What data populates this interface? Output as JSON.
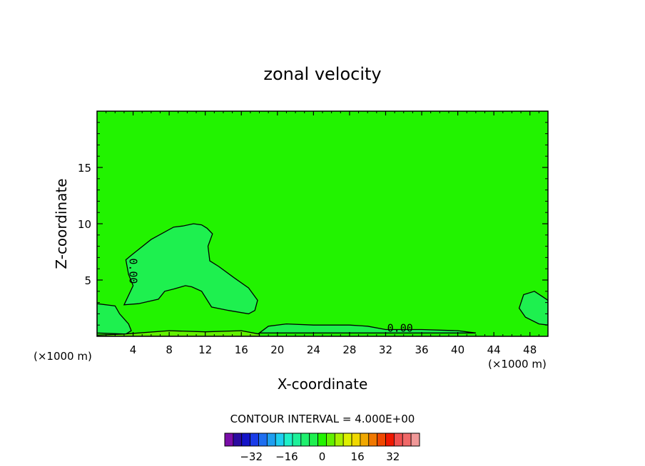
{
  "chart_data": {
    "type": "heatmap",
    "title": "zonal velocity",
    "xlabel": "X-coordinate",
    "ylabel": "Z-coordinate",
    "x_unit_left": "(×1000 m)",
    "x_unit_right": "(×1000 m)",
    "xlim": [
      0,
      50
    ],
    "ylim": [
      0,
      20
    ],
    "x_ticks": [
      4,
      8,
      12,
      16,
      20,
      24,
      28,
      32,
      36,
      40,
      44,
      48
    ],
    "y_ticks": [
      5,
      10,
      15
    ],
    "background_color": "#22f300",
    "regions": [
      {
        "name": "weak-negative-upper-left",
        "color": "#1ef04f",
        "outline": [
          [
            0,
            2.9
          ],
          [
            2,
            2.7
          ],
          [
            2.5,
            2.0
          ],
          [
            3.5,
            1.1
          ],
          [
            3.8,
            0.5
          ],
          [
            3.2,
            0.2
          ],
          [
            0,
            0.3
          ]
        ]
      },
      {
        "name": "weak-negative-plume",
        "color": "#1ef04f",
        "outline": [
          [
            3,
            2.8
          ],
          [
            4,
            4.5
          ],
          [
            3.5,
            5.5
          ],
          [
            3.2,
            6.8
          ],
          [
            3.8,
            7.2
          ],
          [
            6,
            8.6
          ],
          [
            8.5,
            9.7
          ],
          [
            9.5,
            9.8
          ],
          [
            10.7,
            10.0
          ],
          [
            11.6,
            9.9
          ],
          [
            12.2,
            9.6
          ],
          [
            12.8,
            9.1
          ],
          [
            12.3,
            8.0
          ],
          [
            12.5,
            6.7
          ],
          [
            13.5,
            6.2
          ],
          [
            15.2,
            5.2
          ],
          [
            16.8,
            4.3
          ],
          [
            17.8,
            3.2
          ],
          [
            17.5,
            2.3
          ],
          [
            16.8,
            2.0
          ],
          [
            14.6,
            2.3
          ],
          [
            12.7,
            2.6
          ],
          [
            11.6,
            4.0
          ],
          [
            10.5,
            4.4
          ],
          [
            9.8,
            4.5
          ],
          [
            8.5,
            4.2
          ],
          [
            7.5,
            4.0
          ],
          [
            6.8,
            3.3
          ],
          [
            4.6,
            2.9
          ]
        ]
      },
      {
        "name": "weak-negative-surface",
        "color": "#1ef04f",
        "outline": [
          [
            18,
            0.3
          ],
          [
            19,
            0.9
          ],
          [
            21,
            1.1
          ],
          [
            24,
            1.0
          ],
          [
            28,
            1.0
          ],
          [
            30,
            0.9
          ],
          [
            32,
            0.6
          ],
          [
            36,
            0.6
          ],
          [
            40,
            0.5
          ],
          [
            42,
            0.3
          ]
        ]
      },
      {
        "name": "weak-negative-right",
        "color": "#1ef04f",
        "outline": [
          [
            50,
            3.2
          ],
          [
            48.5,
            4.0
          ],
          [
            47.3,
            3.7
          ],
          [
            46.8,
            2.5
          ],
          [
            47.5,
            1.7
          ],
          [
            49,
            1.1
          ],
          [
            50,
            1.0
          ]
        ]
      },
      {
        "name": "weak-positive-surface-band",
        "color": "#62f000",
        "outline": [
          [
            0,
            0.1
          ],
          [
            3,
            0.2
          ],
          [
            8,
            0.5
          ],
          [
            12,
            0.4
          ],
          [
            16,
            0.5
          ],
          [
            18,
            0.2
          ],
          [
            18,
            0
          ],
          [
            0,
            0
          ]
        ]
      }
    ],
    "contour_labels": [
      {
        "text": "0.00",
        "x": 3.6,
        "y": 5.8,
        "rotation": 90
      },
      {
        "text": "0.00",
        "x": 33.6,
        "y": 0.4,
        "rotation": 0
      }
    ],
    "contour_interval_text": "CONTOUR INTERVAL = 4.000E+00",
    "colorbar": {
      "colors": [
        "#7a0da8",
        "#2a0aa0",
        "#1414c8",
        "#1a3ce8",
        "#1e6ef0",
        "#1e9ef0",
        "#1ecef0",
        "#1ef0c8",
        "#1ef09a",
        "#1ef06e",
        "#1ef04f",
        "#22f300",
        "#62f000",
        "#a8f000",
        "#def000",
        "#f0d800",
        "#f0a800",
        "#f07800",
        "#f04800",
        "#f01800",
        "#f05050",
        "#f06868",
        "#f09898"
      ],
      "tick_labels": [
        "−32",
        "−16",
        "0",
        "16",
        "32"
      ],
      "tick_values": [
        -32,
        -16,
        0,
        16,
        32
      ],
      "min_value": -44,
      "max_value": 44
    }
  }
}
